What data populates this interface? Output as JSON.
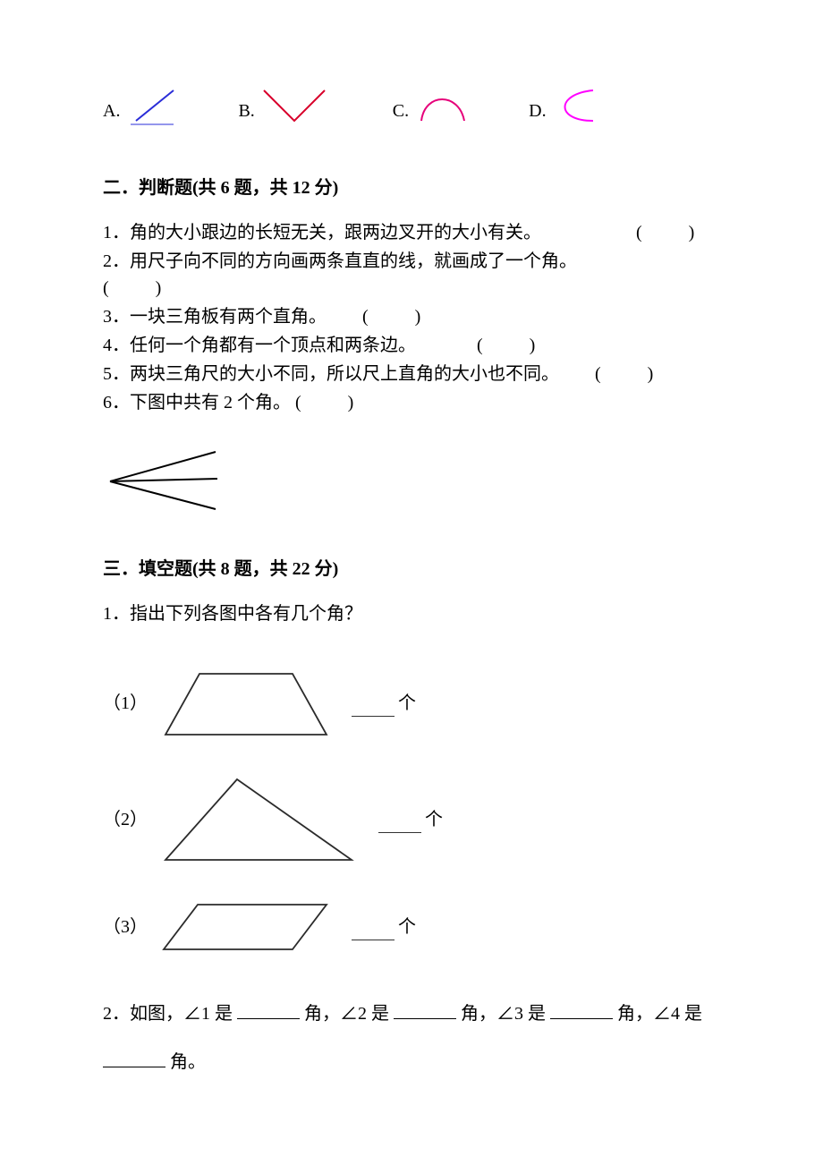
{
  "options": {
    "a_label": "A.",
    "b_label": "B.",
    "c_label": "C.",
    "d_label": "D.",
    "option_font_size": 20,
    "a_color": "#2a2dd8",
    "b_color": "#d8002a",
    "c_color": "#e6007a",
    "d_color": "#ff00ff",
    "stroke_width": 2,
    "label_color": "#000000"
  },
  "section_tf": {
    "header": "二．判断题(共 6 题，共 12 分)",
    "items": [
      "1．角的大小跟边的长短无关，跟两边叉开的大小有关。",
      "2．用尺子向不同的方向画两条直直的线，就画成了一个角。",
      "3．一块三角板有两个直角。",
      "4．任何一个角都有一个顶点和两条边。",
      "5．两块三角尺的大小不同，所以尺上直角的大小也不同。",
      "6．下图中共有 2 个角。"
    ],
    "paren_text": "(　　)",
    "paren_offsets": [
      96,
      126,
      30,
      58,
      30,
      0
    ],
    "angle_figure": {
      "stroke_color": "#000000",
      "width": 140,
      "height": 86
    }
  },
  "section_fill": {
    "header": "三．填空题(共 8 题，共 22 分)",
    "q1_text": "1．指出下列各图中各有几个角？",
    "figs": [
      {
        "idx": "（1）",
        "ans_suffix": "个"
      },
      {
        "idx": "（2）",
        "ans_suffix": "个"
      },
      {
        "idx": "（3）",
        "ans_suffix": "个"
      }
    ],
    "shape_stroke": "#2b2b2b",
    "shape_stroke_width": 1.8,
    "q2": {
      "prefix": "2．如图，∠1 是",
      "mid1": "角，∠2 是",
      "mid2": "角，∠3 是",
      "mid3": "角，∠4 是",
      "line2_suffix": "角。"
    }
  }
}
